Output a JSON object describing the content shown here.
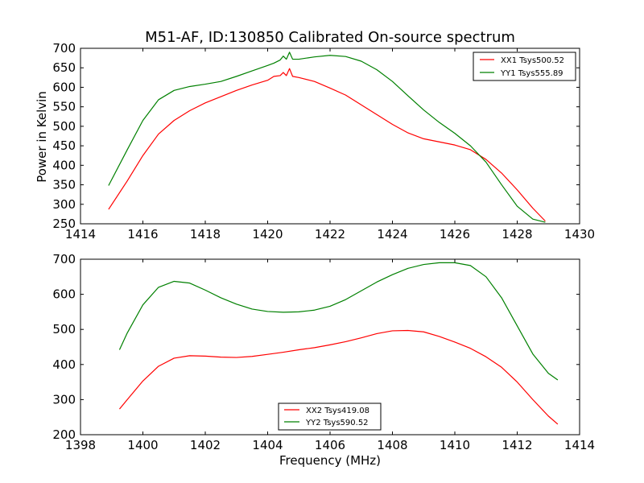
{
  "chart_data": [
    {
      "type": "line",
      "title": "M51-AF, ID:130850 Calibrated On-source spectrum",
      "xlabel": "",
      "ylabel": "Power in Kelvin",
      "xlim": [
        1414,
        1430
      ],
      "ylim": [
        250,
        700
      ],
      "xticks": [
        "1414",
        "1416",
        "1418",
        "1420",
        "1422",
        "1424",
        "1426",
        "1428",
        "1430"
      ],
      "yticks": [
        "250",
        "300",
        "350",
        "400",
        "450",
        "500",
        "550",
        "600",
        "650",
        "700"
      ],
      "legend_position": "top-right",
      "series": [
        {
          "name": "XX1 Tsys500.52",
          "color": "#ff0000",
          "x": [
            1414.9,
            1415.5,
            1416.0,
            1416.5,
            1417.0,
            1417.5,
            1418.0,
            1418.5,
            1419.0,
            1419.5,
            1420.0,
            1420.2,
            1420.4,
            1420.5,
            1420.6,
            1420.7,
            1420.8,
            1421.0,
            1421.5,
            1422.0,
            1422.5,
            1423.0,
            1423.5,
            1424.0,
            1424.5,
            1425.0,
            1425.5,
            1426.0,
            1426.5,
            1427.0,
            1427.5,
            1428.0,
            1428.5,
            1428.9
          ],
          "y": [
            287,
            360,
            425,
            480,
            515,
            540,
            560,
            576,
            592,
            606,
            618,
            628,
            630,
            638,
            630,
            648,
            628,
            625,
            615,
            598,
            580,
            555,
            530,
            505,
            483,
            468,
            460,
            452,
            440,
            415,
            380,
            337,
            290,
            257
          ]
        },
        {
          "name": "YY1 Tsys555.89",
          "color": "#008000",
          "x": [
            1414.9,
            1415.5,
            1416.0,
            1416.5,
            1417.0,
            1417.5,
            1418.0,
            1418.5,
            1419.0,
            1419.5,
            1420.0,
            1420.2,
            1420.4,
            1420.5,
            1420.6,
            1420.7,
            1420.8,
            1421.0,
            1421.5,
            1422.0,
            1422.5,
            1423.0,
            1423.5,
            1424.0,
            1424.5,
            1425.0,
            1425.5,
            1426.0,
            1426.5,
            1427.0,
            1427.5,
            1428.0,
            1428.5,
            1428.9
          ],
          "y": [
            348,
            440,
            515,
            568,
            592,
            602,
            608,
            615,
            628,
            642,
            656,
            662,
            670,
            680,
            672,
            690,
            672,
            672,
            678,
            682,
            679,
            667,
            645,
            615,
            578,
            542,
            510,
            482,
            450,
            408,
            350,
            295,
            262,
            254
          ]
        }
      ]
    },
    {
      "type": "line",
      "title": "",
      "xlabel": "Frequency (MHz)",
      "ylabel": "",
      "xlim": [
        1398,
        1414
      ],
      "ylim": [
        200,
        700
      ],
      "xticks": [
        "1398",
        "1400",
        "1402",
        "1404",
        "1406",
        "1408",
        "1410",
        "1412",
        "1414"
      ],
      "yticks": [
        "200",
        "300",
        "400",
        "500",
        "600",
        "700"
      ],
      "legend_position": "lower-center",
      "series": [
        {
          "name": "XX2 Tsys419.08",
          "color": "#ff0000",
          "x": [
            1399.25,
            1399.5,
            1400.0,
            1400.5,
            1401.0,
            1401.5,
            1402.0,
            1402.5,
            1403.0,
            1403.5,
            1404.0,
            1404.5,
            1405.0,
            1405.5,
            1406.0,
            1406.5,
            1407.0,
            1407.5,
            1408.0,
            1408.5,
            1409.0,
            1409.5,
            1410.0,
            1410.5,
            1411.0,
            1411.5,
            1412.0,
            1412.5,
            1413.0,
            1413.3
          ],
          "y": [
            273,
            300,
            353,
            395,
            418,
            425,
            424,
            421,
            420,
            423,
            429,
            435,
            442,
            448,
            456,
            465,
            476,
            488,
            496,
            497,
            493,
            480,
            464,
            446,
            422,
            392,
            350,
            300,
            253,
            230
          ]
        },
        {
          "name": "YY2 Tsys590.52",
          "color": "#008000",
          "x": [
            1399.25,
            1399.5,
            1400.0,
            1400.5,
            1401.0,
            1401.5,
            1402.0,
            1402.5,
            1403.0,
            1403.5,
            1404.0,
            1404.5,
            1405.0,
            1405.5,
            1406.0,
            1406.5,
            1407.0,
            1407.5,
            1408.0,
            1408.5,
            1409.0,
            1409.5,
            1410.0,
            1410.5,
            1411.0,
            1411.5,
            1412.0,
            1412.5,
            1413.0,
            1413.3
          ],
          "y": [
            442,
            490,
            570,
            620,
            637,
            632,
            612,
            590,
            572,
            558,
            551,
            549,
            550,
            555,
            566,
            585,
            610,
            635,
            656,
            674,
            685,
            690,
            690,
            682,
            650,
            590,
            510,
            430,
            375,
            356
          ]
        }
      ]
    }
  ]
}
